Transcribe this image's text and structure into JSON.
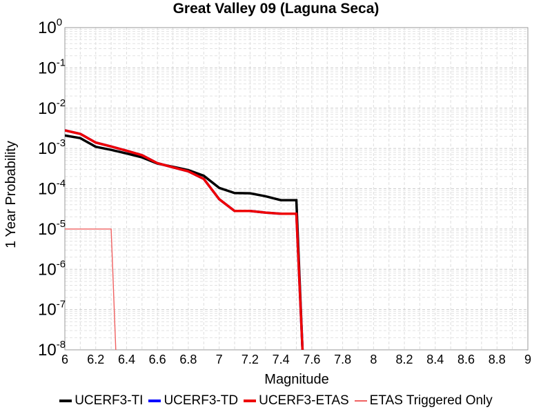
{
  "chart_data": {
    "type": "line",
    "title": "Great Valley 09 (Laguna Seca)",
    "xlabel": "Magnitude",
    "ylabel": "1 Year Probability",
    "xlim": [
      6,
      9
    ],
    "ylim": [
      1e-08,
      1
    ],
    "yscale": "log",
    "grid": true,
    "legend_position": "bottom",
    "x_ticks": [
      "6",
      "6.2",
      "6.4",
      "6.6",
      "6.8",
      "7",
      "7.2",
      "7.4",
      "7.6",
      "7.8",
      "8",
      "8.2",
      "8.4",
      "8.6",
      "8.8",
      "9"
    ],
    "y_ticks": [
      {
        "base": "10",
        "exp": "0",
        "value": 1
      },
      {
        "base": "10",
        "exp": "-1",
        "value": 0.1
      },
      {
        "base": "10",
        "exp": "-2",
        "value": 0.01
      },
      {
        "base": "10",
        "exp": "-3",
        "value": 0.001
      },
      {
        "base": "10",
        "exp": "-4",
        "value": 0.0001
      },
      {
        "base": "10",
        "exp": "-5",
        "value": 1e-05
      },
      {
        "base": "10",
        "exp": "-6",
        "value": 1e-06
      },
      {
        "base": "10",
        "exp": "-7",
        "value": 1e-07
      },
      {
        "base": "10",
        "exp": "-8",
        "value": 1e-08
      }
    ],
    "series": [
      {
        "name": "UCERF3-TI",
        "color": "#000000",
        "line": "thick",
        "x": [
          6.0,
          6.1,
          6.2,
          6.3,
          6.4,
          6.5,
          6.6,
          6.7,
          6.8,
          6.9,
          7.0,
          7.1,
          7.2,
          7.3,
          7.4,
          7.5,
          7.5,
          7.54
        ],
        "y": [
          0.0021,
          0.0018,
          0.0011,
          0.00092,
          0.00075,
          0.0006,
          0.00042,
          0.00035,
          0.00029,
          0.00021,
          0.000105,
          7.8e-05,
          7.7e-05,
          6.5e-05,
          5.2e-05,
          5.2e-05,
          5.2e-05,
          1e-08
        ]
      },
      {
        "name": "UCERF3-TD",
        "color": "#0000ff",
        "line": "thick",
        "x": [
          6.0,
          6.1,
          6.2,
          6.3,
          6.4,
          6.5,
          6.6,
          6.7,
          6.8,
          6.9,
          7.0,
          7.1,
          7.2,
          7.3,
          7.4,
          7.5,
          7.5,
          7.54
        ],
        "y": [
          0.0028,
          0.0023,
          0.0014,
          0.00112,
          0.00088,
          0.00068,
          0.00043,
          0.00034,
          0.00027,
          0.000175,
          5.5e-05,
          2.8e-05,
          2.8e-05,
          2.55e-05,
          2.4e-05,
          2.4e-05,
          2.4e-05,
          1e-08
        ]
      },
      {
        "name": "UCERF3-ETAS",
        "color": "#ee0000",
        "line": "thick",
        "x": [
          6.0,
          6.1,
          6.2,
          6.3,
          6.4,
          6.5,
          6.6,
          6.7,
          6.8,
          6.9,
          7.0,
          7.1,
          7.2,
          7.3,
          7.4,
          7.5,
          7.5,
          7.54
        ],
        "y": [
          0.0028,
          0.0023,
          0.0014,
          0.00112,
          0.00088,
          0.00068,
          0.00043,
          0.00034,
          0.00027,
          0.000175,
          5.5e-05,
          2.8e-05,
          2.8e-05,
          2.55e-05,
          2.4e-05,
          2.4e-05,
          2.4e-05,
          1e-08
        ]
      },
      {
        "name": "ETAS Triggered Only",
        "color": "#f06060",
        "line": "thin",
        "x": [
          6.0,
          6.3,
          6.3,
          6.33
        ],
        "y": [
          1e-05,
          1e-05,
          1e-05,
          1e-08
        ]
      }
    ]
  }
}
